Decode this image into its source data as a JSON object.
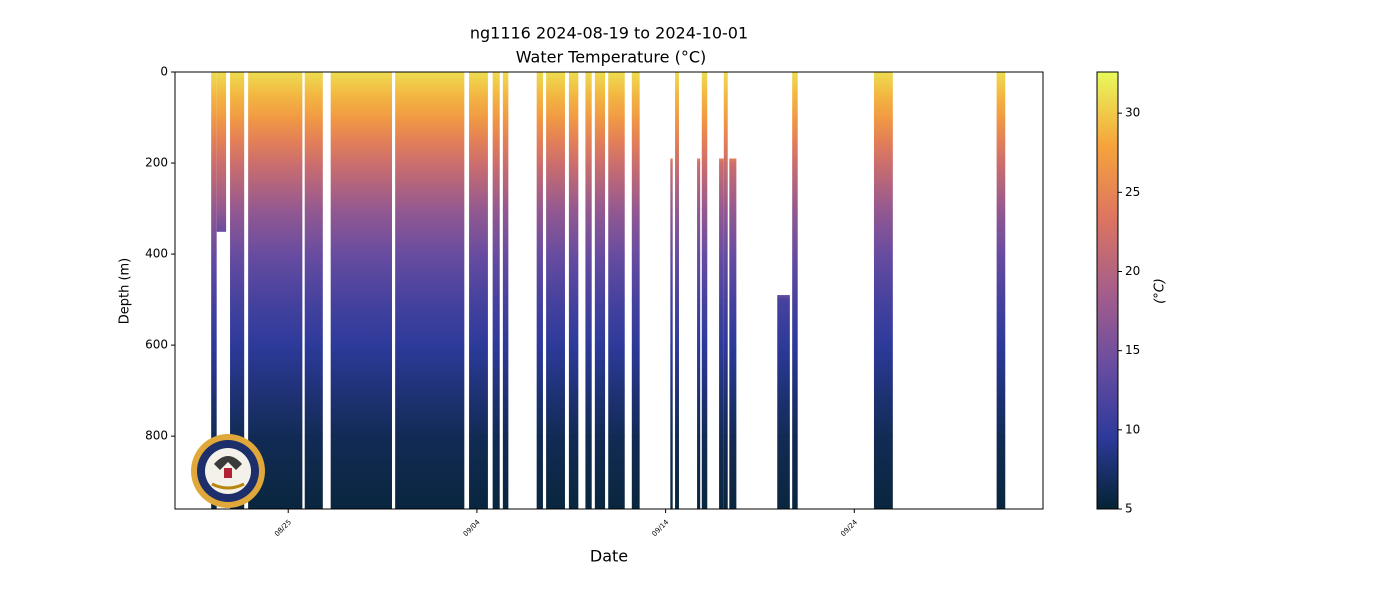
{
  "chart_data": {
    "type": "profile-heatmap",
    "title": "ng1116 2024-08-19 to 2024-10-01",
    "subtitle": "Water Temperature (°C)",
    "x_label": "Date",
    "y_label": "Depth (m)",
    "colorbar_label": "(°C)",
    "xlim": [
      "2024-08-19T00:00",
      "2024-10-04T00:00"
    ],
    "xticks": [
      {
        "value": "2024-08-25T00:00",
        "label": "08/25"
      },
      {
        "value": "2024-09-04T00:00",
        "label": "09/04"
      },
      {
        "value": "2024-09-14T00:00",
        "label": "09/14"
      },
      {
        "value": "2024-09-24T00:00",
        "label": "09/24"
      }
    ],
    "ylim": [
      0,
      960
    ],
    "yticks": [
      0,
      200,
      400,
      600,
      800
    ],
    "clim": [
      5,
      32.6
    ],
    "cticks": [
      5,
      10,
      15,
      20,
      25,
      30
    ],
    "colormap": [
      "#042333",
      "#2e3a9c",
      "#6b4da0",
      "#a65e8a",
      "#dd7560",
      "#f6a43b",
      "#e8fa5b"
    ],
    "temperature_profile": {
      "depth": [
        0,
        50,
        100,
        150,
        200,
        300,
        400,
        500,
        600,
        700,
        800,
        960
      ],
      "values": [
        31,
        29,
        27,
        24.5,
        22,
        17.5,
        14,
        11.5,
        9.5,
        8,
        6.5,
        5.5
      ]
    },
    "casts": [
      {
        "start": "2024-08-20T22:00",
        "end": "2024-08-21T05:00",
        "depth_min": 0,
        "depth_max": 960
      },
      {
        "start": "2024-08-21T05:00",
        "end": "2024-08-21T17:00",
        "depth_min": 0,
        "depth_max": 350
      },
      {
        "start": "2024-08-21T22:00",
        "end": "2024-08-22T16:00",
        "depth_min": 0,
        "depth_max": 960
      },
      {
        "start": "2024-08-22T21:00",
        "end": "2024-08-25T18:00",
        "depth_min": 0,
        "depth_max": 960
      },
      {
        "start": "2024-08-25T21:00",
        "end": "2024-08-26T20:00",
        "depth_min": 0,
        "depth_max": 960
      },
      {
        "start": "2024-08-27T06:00",
        "end": "2024-08-30T12:00",
        "depth_min": 0,
        "depth_max": 960
      },
      {
        "start": "2024-08-30T16:00",
        "end": "2024-09-03T08:00",
        "depth_min": 0,
        "depth_max": 960
      },
      {
        "start": "2024-09-03T14:00",
        "end": "2024-09-04T14:00",
        "depth_min": 0,
        "depth_max": 960
      },
      {
        "start": "2024-09-04T20:00",
        "end": "2024-09-05T05:00",
        "depth_min": 0,
        "depth_max": 960
      },
      {
        "start": "2024-09-05T09:00",
        "end": "2024-09-05T16:00",
        "depth_min": 0,
        "depth_max": 960
      },
      {
        "start": "2024-09-07T04:00",
        "end": "2024-09-07T12:00",
        "depth_min": 0,
        "depth_max": 960
      },
      {
        "start": "2024-09-07T16:00",
        "end": "2024-09-08T16:00",
        "depth_min": 0,
        "depth_max": 960
      },
      {
        "start": "2024-09-08T21:00",
        "end": "2024-09-09T09:00",
        "depth_min": 0,
        "depth_max": 960
      },
      {
        "start": "2024-09-09T18:00",
        "end": "2024-09-10T02:00",
        "depth_min": 0,
        "depth_max": 960
      },
      {
        "start": "2024-09-10T06:00",
        "end": "2024-09-10T19:00",
        "depth_min": 0,
        "depth_max": 960
      },
      {
        "start": "2024-09-10T23:00",
        "end": "2024-09-11T20:00",
        "depth_min": 0,
        "depth_max": 960
      },
      {
        "start": "2024-09-12T05:00",
        "end": "2024-09-12T15:00",
        "depth_min": 0,
        "depth_max": 960
      },
      {
        "start": "2024-09-14T06:00",
        "end": "2024-09-14T09:00",
        "depth_min": 190,
        "depth_max": 960
      },
      {
        "start": "2024-09-14T12:00",
        "end": "2024-09-14T17:00",
        "depth_min": 0,
        "depth_max": 960
      },
      {
        "start": "2024-09-15T16:00",
        "end": "2024-09-15T20:00",
        "depth_min": 190,
        "depth_max": 960
      },
      {
        "start": "2024-09-15T22:00",
        "end": "2024-09-16T05:00",
        "depth_min": 0,
        "depth_max": 960
      },
      {
        "start": "2024-09-16T20:00",
        "end": "2024-09-17T02:00",
        "depth_min": 190,
        "depth_max": 960
      },
      {
        "start": "2024-09-17T02:00",
        "end": "2024-09-17T07:00",
        "depth_min": 0,
        "depth_max": 960
      },
      {
        "start": "2024-09-17T09:00",
        "end": "2024-09-17T18:00",
        "depth_min": 190,
        "depth_max": 960
      },
      {
        "start": "2024-09-19T22:00",
        "end": "2024-09-20T14:00",
        "depth_min": 490,
        "depth_max": 960
      },
      {
        "start": "2024-09-20T17:00",
        "end": "2024-09-21T00:00",
        "depth_min": 0,
        "depth_max": 960
      },
      {
        "start": "2024-09-25T01:00",
        "end": "2024-09-26T01:00",
        "depth_min": 0,
        "depth_max": 960
      },
      {
        "start": "2024-10-01T13:00",
        "end": "2024-10-02T00:00",
        "depth_min": 0,
        "depth_max": 960
      }
    ]
  }
}
